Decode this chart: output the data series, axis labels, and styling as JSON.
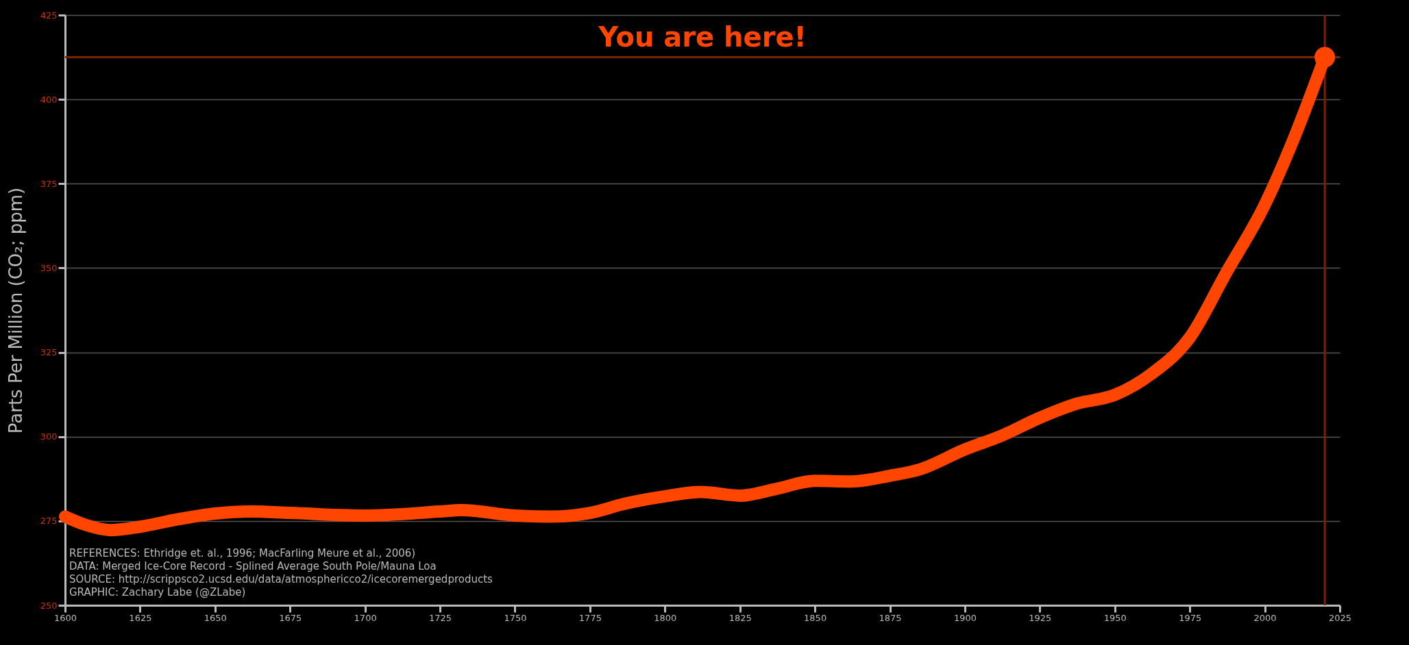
{
  "chart_data": {
    "type": "line",
    "ylabel": "Parts Per Million (CO₂; ppm)",
    "xlim": [
      1600,
      2025
    ],
    "xticks": [
      1600,
      1625,
      1650,
      1675,
      1700,
      1725,
      1750,
      1775,
      1800,
      1825,
      1850,
      1875,
      1900,
      1925,
      1950,
      1975,
      2000,
      2025
    ],
    "ylim": [
      250,
      425
    ],
    "yticks": [
      250,
      275,
      300,
      325,
      350,
      375,
      400,
      425
    ],
    "grid": "y",
    "series": [
      {
        "color": "#ff4500",
        "x": [
          1600,
          1607,
          1615,
          1625,
          1637,
          1650,
          1662,
          1675,
          1700,
          1725,
          1732,
          1750,
          1762,
          1775,
          1787,
          1800,
          1812,
          1825,
          1837,
          1850,
          1862,
          1875,
          1885,
          1900,
          1912,
          1925,
          1937,
          1950,
          1962,
          1975,
          1987,
          2000,
          2010,
          2020
        ],
        "values": [
          276.3,
          273.8,
          272.3,
          273.3,
          275.4,
          277.2,
          277.8,
          277.4,
          276.6,
          277.8,
          278.2,
          276.6,
          276.3,
          277.4,
          280.2,
          282.3,
          283.6,
          282.5,
          284.5,
          286.9,
          286.7,
          288.4,
          290.3,
          296.2,
          300.2,
          305.6,
          309.7,
          312.4,
          318.5,
          329.4,
          348.4,
          368.8,
          389.1,
          412.5
        ]
      },
      {
        "type": "scatter",
        "color": "#ff4500",
        "marker": "circle",
        "x": [
          2020
        ],
        "values": [
          412.5
        ]
      }
    ],
    "ref_lines": [
      {
        "axis": "y",
        "value": 412.5,
        "label": "You are here!",
        "color": "#7a2200"
      },
      {
        "axis": "x",
        "value": 2020,
        "color": "#7a2200"
      }
    ],
    "annotations": [
      "REFERENCES: Ethridge et. al., 1996; MacFarling Meure et al., 2006)",
      "DATA: Merged Ice-Core Record - Splined Average South Pole/Mauna Loa",
      "SOURCE: http://scrippsco2.ucsd.edu/data/atmosphericco2/icecoremergedproducts",
      "GRAPHIC: Zachary Labe (@ZLabe)"
    ]
  }
}
